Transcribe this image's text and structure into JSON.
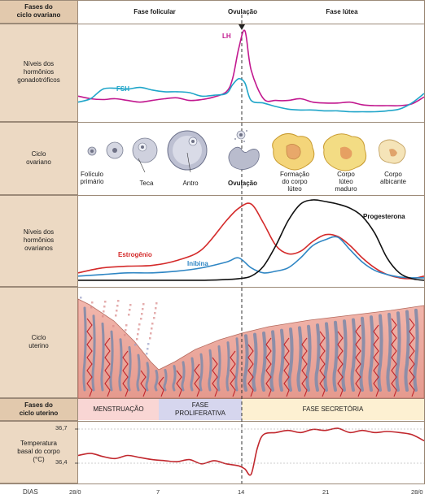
{
  "header": {
    "row_label": "Fases do\nciclo ovariano",
    "follicular": "Fase folicular",
    "ovulation": "Ovulação",
    "luteal": "Fase lútea"
  },
  "rows": {
    "gonadotropic": "Níveis dos\nhormônios\ngonadotróficos",
    "ovarian_cycle": "Ciclo\novariano",
    "ovarian_hormones": "Níveis dos\nhormônios\novarianos",
    "uterine_cycle": "Ciclo\nuterino",
    "uterine_phases": "Fases do\nciclo uterino",
    "body_temp": "Temperatura\nbasal do corpo\n(°C)"
  },
  "series_labels": {
    "lh": "LH",
    "fsh": "FSH",
    "estrogen": "Estrogênio",
    "inhibin": "Inibina",
    "progesterone": "Progesterona"
  },
  "colors": {
    "lh": "#c2188f",
    "fsh": "#1fa5c9",
    "estrogen": "#d42a2a",
    "inhibin": "#2f86c4",
    "progesterone": "#111111",
    "temperature": "#c1272d",
    "sidebar": "#ecd9c3",
    "menstruation": "#f9d6d4",
    "proliferative": "#d6d6ee",
    "secretory": "#fdf0d2"
  },
  "ovarian_stages": [
    {
      "label": "Folículo\nprimário"
    },
    {
      "label": "Teca"
    },
    {
      "label": "Antro"
    },
    {
      "label": "Ovulação"
    },
    {
      "label": "Formação\ndo corpo\nlúteo"
    },
    {
      "label": "Corpo\nlúteo\nmaduro"
    },
    {
      "label": "Corpo\nalbicante"
    }
  ],
  "uterine_phases": {
    "menstruation": "MENSTRUAÇÃO",
    "proliferative": "FASE\nPROLIFERATIVA",
    "secretory": "FASE SECRETÓRIA"
  },
  "temperature": {
    "high": "36,7",
    "low": "36,4"
  },
  "days": {
    "label": "DIAS",
    "ticks": [
      "28/0",
      "7",
      "14",
      "21",
      "28/0"
    ]
  },
  "chart_data": [
    {
      "type": "line",
      "x": [
        0,
        1,
        2,
        3,
        4,
        5,
        6,
        7,
        8,
        9,
        10,
        11,
        12,
        12.5,
        13,
        13.5,
        14,
        15,
        16,
        17,
        18,
        19,
        20,
        21,
        22,
        23,
        24,
        25,
        26,
        27,
        28
      ],
      "series": [
        {
          "name": "LH",
          "values": [
            0.25,
            0.22,
            0.21,
            0.22,
            0.2,
            0.18,
            0.2,
            0.22,
            0.23,
            0.2,
            0.21,
            0.24,
            0.3,
            0.45,
            0.8,
            1.0,
            0.55,
            0.22,
            0.2,
            0.2,
            0.22,
            0.18,
            0.17,
            0.17,
            0.18,
            0.15,
            0.14,
            0.14,
            0.14,
            0.16,
            0.24
          ]
        },
        {
          "name": "FSH",
          "values": [
            0.18,
            0.22,
            0.33,
            0.34,
            0.33,
            0.35,
            0.32,
            0.3,
            0.3,
            0.29,
            0.25,
            0.26,
            0.28,
            0.38,
            0.45,
            0.4,
            0.2,
            0.17,
            0.13,
            0.1,
            0.09,
            0.09,
            0.08,
            0.08,
            0.07,
            0.07,
            0.07,
            0.08,
            0.1,
            0.17,
            0.28
          ]
        }
      ],
      "ylim": [
        0,
        1
      ]
    },
    {
      "type": "line",
      "x": [
        0,
        2,
        4,
        6,
        8,
        10,
        12,
        13,
        14,
        15,
        16,
        17,
        18,
        19,
        20,
        21,
        22,
        23,
        24,
        25,
        26,
        27,
        28
      ],
      "series": [
        {
          "name": "Estrogênio",
          "values": [
            0.12,
            0.18,
            0.2,
            0.21,
            0.27,
            0.4,
            0.75,
            0.9,
            0.95,
            0.72,
            0.45,
            0.35,
            0.38,
            0.5,
            0.58,
            0.56,
            0.45,
            0.3,
            0.18,
            0.1,
            0.06,
            0.05,
            0.08
          ]
        },
        {
          "name": "Inibina",
          "values": [
            0.08,
            0.1,
            0.12,
            0.12,
            0.14,
            0.18,
            0.25,
            0.3,
            0.18,
            0.12,
            0.14,
            0.18,
            0.3,
            0.45,
            0.52,
            0.55,
            0.4,
            0.25,
            0.15,
            0.1,
            0.07,
            0.06,
            0.06
          ]
        },
        {
          "name": "Progesterona",
          "values": [
            0.03,
            0.03,
            0.03,
            0.03,
            0.03,
            0.03,
            0.04,
            0.05,
            0.08,
            0.2,
            0.45,
            0.75,
            0.95,
            1.0,
            0.98,
            0.95,
            0.9,
            0.8,
            0.6,
            0.3,
            0.12,
            0.05,
            0.03
          ]
        }
      ],
      "ylim": [
        0,
        1
      ]
    },
    {
      "type": "line",
      "x": [
        0,
        1,
        2,
        3,
        4,
        5,
        6,
        7,
        8,
        9,
        10,
        11,
        12,
        13,
        13.5,
        14,
        14.5,
        15,
        16,
        17,
        18,
        19,
        20,
        21,
        22,
        23,
        24,
        25,
        26,
        27,
        28
      ],
      "series": [
        {
          "name": "Temperatura",
          "values": [
            36.48,
            36.5,
            36.47,
            36.45,
            36.48,
            36.46,
            36.44,
            36.43,
            36.42,
            36.44,
            36.4,
            36.43,
            36.4,
            36.38,
            36.35,
            36.3,
            36.55,
            36.68,
            36.7,
            36.72,
            36.7,
            36.73,
            36.72,
            36.74,
            36.7,
            36.72,
            36.7,
            36.71,
            36.7,
            36.68,
            36.62
          ]
        }
      ],
      "ylim": [
        36.25,
        36.78
      ],
      "yticks": [
        36.4,
        36.7
      ]
    }
  ]
}
